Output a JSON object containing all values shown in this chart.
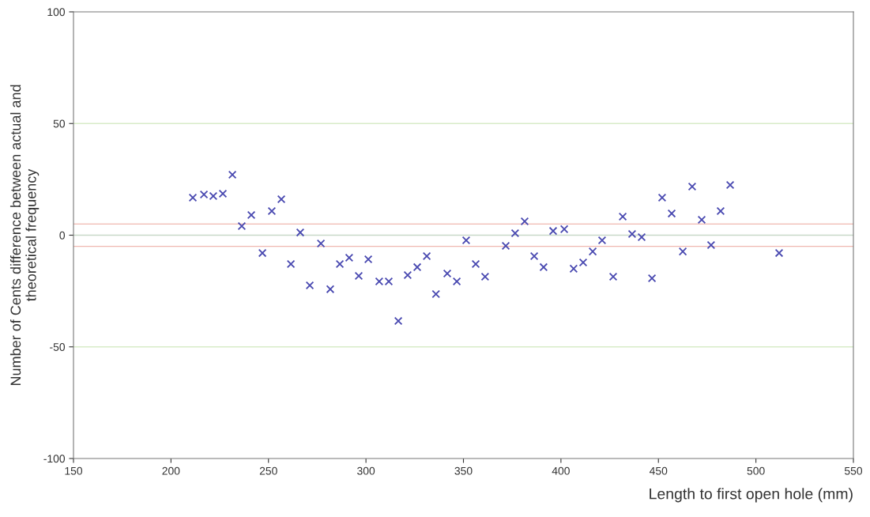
{
  "chart_data": {
    "type": "scatter",
    "xlabel": "Length to first open hole (mm)",
    "ylabel": "Number of Cents difference between actual and\ntheoretical frequency",
    "xlim": [
      150,
      550
    ],
    "xticks": [
      150,
      200,
      250,
      300,
      350,
      400,
      450,
      500,
      550
    ],
    "ylim": [
      -100,
      100
    ],
    "yticks": [
      -100,
      -50,
      0,
      50,
      100
    ],
    "grid": false,
    "marker": "cross",
    "ref_lines": [
      {
        "axis": "y",
        "value": 50,
        "color": "#d8ecc8"
      },
      {
        "axis": "y",
        "value": -50,
        "color": "#d8ecc8"
      },
      {
        "axis": "y",
        "value": 0,
        "color": "#c8d8c8"
      },
      {
        "axis": "y",
        "value": 5,
        "color": "#f0b8b0"
      },
      {
        "axis": "y",
        "value": -5,
        "color": "#f0b8b0"
      }
    ],
    "series": [
      {
        "color": "#4848b0",
        "x": [
          211.2,
          216.9,
          221.7,
          226.6,
          231.5,
          236.3,
          241.2,
          246.9,
          251.7,
          256.6,
          261.5,
          266.3,
          271.2,
          276.9,
          281.7,
          286.6,
          291.4,
          296.3,
          301.2,
          306.8,
          311.7,
          316.6,
          321.4,
          326.3,
          331.2,
          335.9,
          341.7,
          346.6,
          351.4,
          356.3,
          361.1,
          371.7,
          376.5,
          381.4,
          386.3,
          391.1,
          396.0,
          401.7,
          406.5,
          411.4,
          416.3,
          421.1,
          426.8,
          431.7,
          436.5,
          441.4,
          446.7,
          451.9,
          456.8,
          462.5,
          467.3,
          472.2,
          477.0,
          481.9,
          486.8,
          511.9
        ],
        "values": [
          16.8,
          18.2,
          17.5,
          18.6,
          27.1,
          4.1,
          9.0,
          -8.0,
          10.8,
          16.1,
          -12.9,
          1.2,
          -22.5,
          -3.7,
          -24.2,
          -12.9,
          -10.1,
          -18.2,
          -10.8,
          -20.7,
          -20.7,
          -38.4,
          -17.9,
          -14.3,
          -9.4,
          -26.4,
          -17.2,
          -20.7,
          -2.3,
          -12.9,
          -18.6,
          -4.8,
          0.9,
          6.2,
          -9.4,
          -14.3,
          1.9,
          2.7,
          -15.0,
          -12.2,
          -7.3,
          -2.3,
          -18.6,
          8.3,
          0.5,
          -0.9,
          -19.3,
          16.8,
          9.7,
          -7.3,
          21.8,
          6.9,
          -4.4,
          10.8,
          22.5,
          -8.0
        ]
      }
    ]
  }
}
